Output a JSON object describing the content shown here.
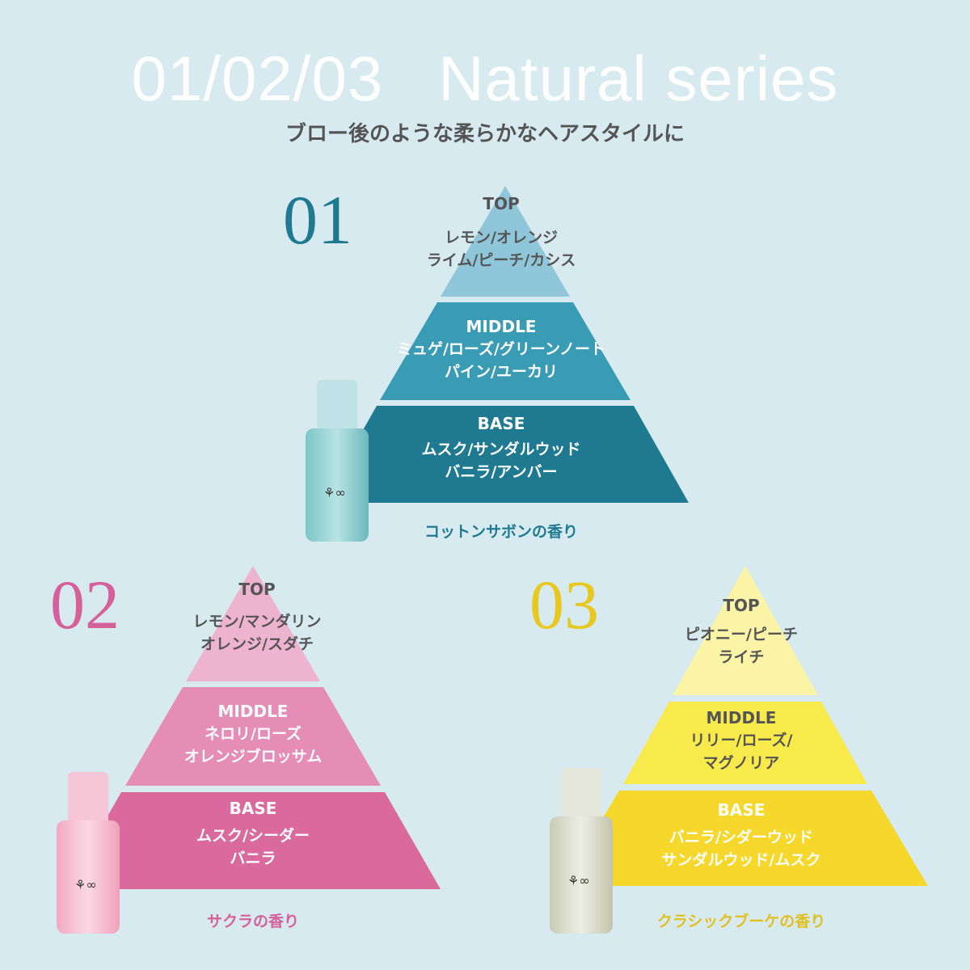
{
  "header": {
    "title": "01/02/03   Natural series",
    "subtitle": "ブロー後のような柔らかなヘアスタイルに"
  },
  "pyramids": [
    {
      "number": "01",
      "color": "#1f7a91",
      "band_colors": [
        "#8fc6d9",
        "#3a9bb5",
        "#1f7a91"
      ],
      "top": {
        "label": "TOP",
        "notes": [
          "レモン/オレンジ",
          "ライム/ピーチ/カシス"
        ]
      },
      "middle": {
        "label": "MIDDLE",
        "notes": [
          "ミュゲ/ローズ/グリーンノート",
          "パイン/ユーカリ"
        ]
      },
      "base": {
        "label": "BASE",
        "notes": [
          "ムスク/サンダルウッド",
          "バニラ/アンバー"
        ]
      },
      "scent": "コットンサボンの香り",
      "bottle_icon": "bottle-teal"
    },
    {
      "number": "02",
      "color": "#d6609a",
      "band_colors": [
        "#eeb4cf",
        "#e58cb7",
        "#da6a9d"
      ],
      "top": {
        "label": "TOP",
        "notes": [
          "レモン/マンダリン",
          "オレンジ/スダチ"
        ]
      },
      "middle": {
        "label": "MIDDLE",
        "notes": [
          "ネロリ/ローズ",
          "オレンジブロッサム"
        ]
      },
      "base": {
        "label": "BASE",
        "notes": [
          "ムスク/シーダー",
          "バニラ"
        ]
      },
      "scent": "サクラの香り",
      "bottle_icon": "bottle-pink"
    },
    {
      "number": "03",
      "color": "#e8c81e",
      "band_colors": [
        "#fbf3a5",
        "#f8ea4a",
        "#f5d82b"
      ],
      "top": {
        "label": "TOP",
        "notes": [
          "ピオニー/ピーチ",
          "ライチ"
        ]
      },
      "middle": {
        "label": "MIDDLE",
        "notes": [
          "リリー/ローズ/",
          "マグノリア"
        ]
      },
      "base": {
        "label": "BASE",
        "notes": [
          "バニラ/シダーウッド",
          "サンダルウッド/ムスク"
        ]
      },
      "scent": "クラシックブーケの香り",
      "bottle_icon": "bottle-clear"
    }
  ]
}
